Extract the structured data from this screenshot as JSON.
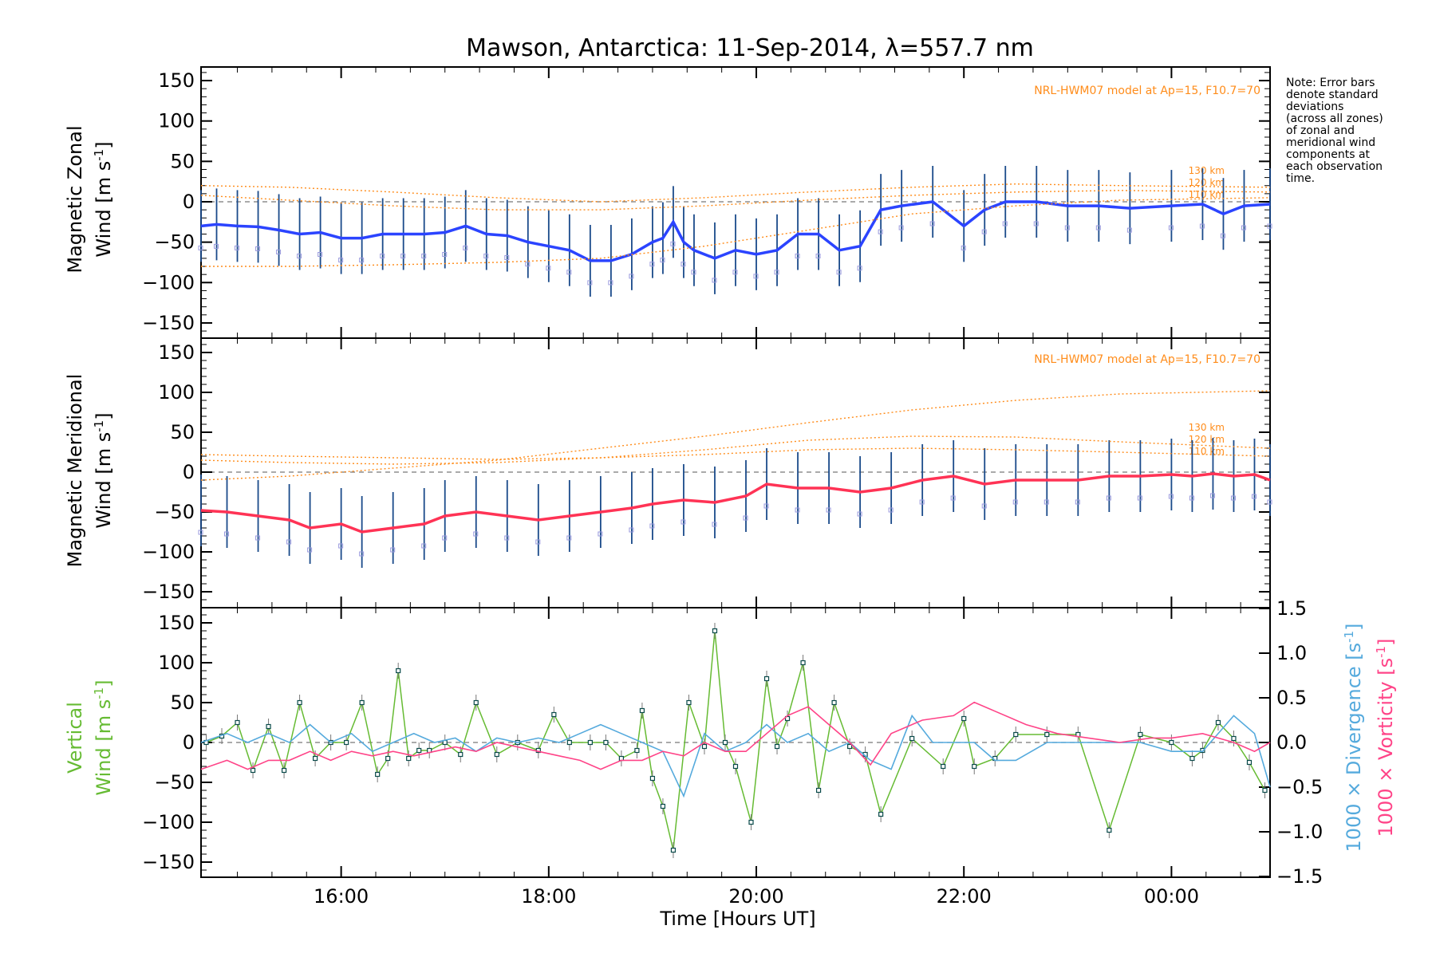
{
  "title": "Mawson, Antarctica: 11-Sep-2014, λ=557.7 nm",
  "note": [
    "Note: Error bars",
    "denote standard",
    "deviations",
    "(across all zones)",
    "of zonal and",
    "meridional wind",
    "components at",
    "each observation",
    "time."
  ],
  "x_axis": {
    "label": "Time [Hours UT]",
    "ticks": [
      "16:00",
      "18:00",
      "20:00",
      "22:00",
      "00:00"
    ],
    "tick_hours": [
      16,
      18,
      20,
      22,
      24
    ],
    "range_hours": [
      14.65,
      24.95
    ]
  },
  "colors": {
    "zonal": "#2b44ff",
    "meridional": "#ff3355",
    "vertical": "#66bb33",
    "divergence": "#55aadd",
    "vorticity": "#ff4488",
    "model": "#ff8c1a",
    "error_bar": "#1a4a8a",
    "zone_points": "#9999dd"
  },
  "panels": {
    "zonal": {
      "ylabel_line1": "Magnetic Zonal",
      "ylabel_line2": "Wind [m s",
      "ylabel_sup": "-1",
      "ylabel_close": "]",
      "model_label": "NRL-HWM07 model at Ap=15, F10.7=70",
      "altitudes": [
        "130 km",
        "120 km",
        "110 km"
      ],
      "yticks": [
        "150",
        "100",
        "50",
        "0",
        "−50",
        "−100",
        "−150"
      ]
    },
    "meridional": {
      "ylabel_line1": "Magnetic Meridional",
      "ylabel_line2": "Wind [m s",
      "ylabel_sup": "-1",
      "ylabel_close": "]",
      "model_label": "NRL-HWM07 model at Ap=15, F10.7=70",
      "altitudes": [
        "130 km",
        "120 km",
        "110 km"
      ],
      "yticks": [
        "150",
        "100",
        "50",
        "0",
        "−50",
        "−100",
        "−150"
      ]
    },
    "vertical": {
      "ylabel_line1": "Vertical",
      "ylabel_line2": "Wind [m s",
      "ylabel_sup": "-1",
      "ylabel_close": "]",
      "yticks": [
        "150",
        "100",
        "50",
        "0",
        "−50",
        "−100",
        "−150"
      ],
      "right_label_div": "1000 × Divergence [s",
      "right_label_vort": "1000 × Vorticity [s",
      "right_sup": "-1",
      "right_close": "]",
      "right_ticks": [
        "1.5",
        "1.0",
        "0.5",
        "0.0",
        "−0.5",
        "−1.0",
        "−1.5"
      ]
    }
  },
  "chart_data": [
    {
      "type": "line",
      "panel": "zonal",
      "title": "Mawson, Antarctica: 11-Sep-2014, λ=557.7 nm",
      "xlabel": "Time [Hours UT]",
      "ylabel": "Magnetic Zonal Wind [m s-1]",
      "xlim_hours": [
        14.65,
        24.95
      ],
      "ylim": [
        -165,
        165
      ],
      "series": [
        {
          "name": "zonal mean",
          "x": [
            14.65,
            14.8,
            15.0,
            15.2,
            15.4,
            15.6,
            15.8,
            16.0,
            16.2,
            16.4,
            16.6,
            16.8,
            17.0,
            17.2,
            17.4,
            17.6,
            17.8,
            18.0,
            18.2,
            18.4,
            18.6,
            18.8,
            19.0,
            19.1,
            19.2,
            19.3,
            19.4,
            19.6,
            19.8,
            20.0,
            20.2,
            20.4,
            20.6,
            20.8,
            21.0,
            21.2,
            21.4,
            21.7,
            22.0,
            22.2,
            22.4,
            22.7,
            23.0,
            23.3,
            23.6,
            24.0,
            24.3,
            24.5,
            24.7,
            24.95
          ],
          "y": [
            -30,
            -28,
            -30,
            -31,
            -35,
            -40,
            -38,
            -45,
            -45,
            -40,
            -40,
            -40,
            -38,
            -30,
            -40,
            -42,
            -50,
            -55,
            -60,
            -73,
            -73,
            -65,
            -50,
            -45,
            -25,
            -50,
            -60,
            -70,
            -60,
            -65,
            -60,
            -40,
            -40,
            -60,
            -55,
            -10,
            -5,
            0,
            -30,
            -10,
            0,
            0,
            -5,
            -5,
            -8,
            -5,
            -3,
            -15,
            -5,
            -3
          ]
        },
        {
          "name": "model 130 km",
          "x": [
            14.65,
            15.5,
            16.5,
            17.5,
            18.5,
            19.5,
            20.5,
            21.5,
            22.5,
            23.5,
            24.95
          ],
          "y": [
            20,
            18,
            12,
            5,
            0,
            5,
            12,
            18,
            22,
            20,
            18
          ]
        },
        {
          "name": "model 120 km",
          "x": [
            14.65,
            15.5,
            16.5,
            17.5,
            18.5,
            19.5,
            20.5,
            21.5,
            22.5,
            23.5,
            24.95
          ],
          "y": [
            8,
            2,
            -5,
            -10,
            -10,
            -5,
            2,
            8,
            12,
            14,
            12
          ]
        },
        {
          "name": "model 110 km",
          "x": [
            14.65,
            15.5,
            16.5,
            17.5,
            18.5,
            19.5,
            20.5,
            21.5,
            22.5,
            23.5,
            24.95
          ],
          "y": [
            -80,
            -80,
            -78,
            -75,
            -70,
            -55,
            -35,
            -15,
            -5,
            2,
            5
          ]
        }
      ]
    },
    {
      "type": "line",
      "panel": "meridional",
      "xlabel": "Time [Hours UT]",
      "ylabel": "Magnetic Meridional Wind [m s-1]",
      "xlim_hours": [
        14.65,
        24.95
      ],
      "ylim": [
        -165,
        165
      ],
      "series": [
        {
          "name": "meridional mean",
          "x": [
            14.65,
            14.9,
            15.2,
            15.5,
            15.7,
            16.0,
            16.2,
            16.5,
            16.8,
            17.0,
            17.3,
            17.6,
            17.9,
            18.2,
            18.5,
            18.8,
            19.0,
            19.3,
            19.6,
            19.9,
            20.1,
            20.4,
            20.7,
            21.0,
            21.3,
            21.6,
            21.9,
            22.2,
            22.5,
            22.8,
            23.1,
            23.4,
            23.7,
            24.0,
            24.2,
            24.4,
            24.6,
            24.8,
            24.95
          ],
          "y": [
            -48,
            -50,
            -55,
            -60,
            -70,
            -65,
            -75,
            -70,
            -65,
            -55,
            -50,
            -55,
            -60,
            -55,
            -50,
            -45,
            -40,
            -35,
            -38,
            -30,
            -15,
            -20,
            -20,
            -25,
            -20,
            -10,
            -5,
            -15,
            -10,
            -10,
            -10,
            -5,
            -5,
            -3,
            -5,
            -2,
            -5,
            -3,
            -10
          ]
        },
        {
          "name": "model 130 km",
          "x": [
            14.65,
            15.5,
            16.5,
            17.5,
            18.5,
            19.5,
            20.5,
            21.5,
            22.5,
            23.5,
            24.95
          ],
          "y": [
            -10,
            -5,
            5,
            15,
            30,
            45,
            62,
            78,
            90,
            98,
            102
          ]
        },
        {
          "name": "model 120 km",
          "x": [
            14.65,
            15.5,
            16.5,
            17.5,
            18.5,
            19.5,
            20.5,
            21.5,
            22.5,
            23.5,
            24.95
          ],
          "y": [
            15,
            12,
            10,
            12,
            18,
            28,
            40,
            45,
            44,
            38,
            30
          ]
        },
        {
          "name": "model 110 km",
          "x": [
            14.65,
            15.5,
            16.5,
            17.5,
            18.5,
            19.5,
            20.5,
            21.5,
            22.5,
            23.5,
            24.95
          ],
          "y": [
            22,
            20,
            18,
            16,
            18,
            22,
            28,
            30,
            28,
            25,
            20
          ]
        }
      ]
    },
    {
      "type": "line",
      "panel": "vertical",
      "xlabel": "Time [Hours UT]",
      "ylabel": "Vertical Wind [m s-1]",
      "xlim_hours": [
        14.65,
        24.95
      ],
      "ylim": [
        -165,
        165
      ],
      "y2label": "1000 × Divergence [s-1] / 1000 × Vorticity [s-1]",
      "y2lim": [
        -1.5,
        1.5
      ],
      "series": [
        {
          "name": "vertical wind",
          "axis": "left",
          "x": [
            14.7,
            14.85,
            15.0,
            15.15,
            15.3,
            15.45,
            15.6,
            15.75,
            15.9,
            16.05,
            16.2,
            16.35,
            16.45,
            16.55,
            16.65,
            16.75,
            16.85,
            17.0,
            17.15,
            17.3,
            17.5,
            17.7,
            17.9,
            18.05,
            18.2,
            18.4,
            18.55,
            18.7,
            18.85,
            18.9,
            19.0,
            19.1,
            19.2,
            19.35,
            19.5,
            19.6,
            19.7,
            19.8,
            19.95,
            20.1,
            20.2,
            20.3,
            20.45,
            20.6,
            20.75,
            20.9,
            21.05,
            21.2,
            21.5,
            21.8,
            22.0,
            22.1,
            22.3,
            22.5,
            22.8,
            23.1,
            23.4,
            23.7,
            24.0,
            24.2,
            24.3,
            24.45,
            24.6,
            24.75,
            24.9
          ],
          "y": [
            0,
            8,
            25,
            -35,
            20,
            -35,
            50,
            -20,
            0,
            0,
            50,
            -40,
            -20,
            90,
            -20,
            -10,
            -10,
            0,
            -15,
            50,
            -15,
            0,
            -10,
            35,
            0,
            0,
            0,
            -20,
            -10,
            40,
            -45,
            -80,
            -135,
            50,
            -5,
            140,
            0,
            -30,
            -100,
            80,
            -5,
            30,
            100,
            -60,
            50,
            -5,
            -15,
            -90,
            5,
            -30,
            30,
            -30,
            -20,
            10,
            10,
            10,
            -110,
            10,
            0,
            -20,
            -10,
            25,
            5,
            -25,
            -60
          ]
        },
        {
          "name": "1000 x Divergence",
          "axis": "right",
          "x": [
            14.65,
            14.9,
            15.1,
            15.3,
            15.5,
            15.7,
            15.9,
            16.1,
            16.3,
            16.5,
            16.7,
            16.9,
            17.1,
            17.3,
            17.5,
            17.7,
            17.9,
            18.1,
            18.3,
            18.5,
            18.7,
            18.9,
            19.1,
            19.3,
            19.5,
            19.7,
            19.9,
            20.1,
            20.3,
            20.5,
            20.7,
            20.9,
            21.1,
            21.3,
            21.5,
            21.7,
            21.9,
            22.1,
            22.3,
            22.5,
            22.8,
            23.1,
            23.4,
            23.7,
            24.0,
            24.3,
            24.6,
            24.8,
            24.95
          ],
          "y": [
            0.0,
            0.1,
            0.0,
            0.1,
            0.0,
            0.2,
            0.0,
            0.1,
            -0.1,
            0.0,
            0.1,
            0.0,
            0.05,
            -0.1,
            0.05,
            0.0,
            0.05,
            0.0,
            0.1,
            0.2,
            0.1,
            0.0,
            -0.1,
            -0.6,
            0.1,
            -0.1,
            0.0,
            0.2,
            0.0,
            0.1,
            -0.1,
            0.0,
            -0.2,
            -0.3,
            0.3,
            0.0,
            0.0,
            0.0,
            -0.2,
            -0.2,
            0.0,
            0.0,
            0.0,
            0.0,
            -0.1,
            -0.1,
            0.3,
            0.1,
            -0.5
          ]
        },
        {
          "name": "1000 x Vorticity",
          "axis": "right",
          "x": [
            14.65,
            14.9,
            15.1,
            15.3,
            15.5,
            15.7,
            15.9,
            16.1,
            16.3,
            16.5,
            16.7,
            16.9,
            17.1,
            17.3,
            17.5,
            17.7,
            17.9,
            18.1,
            18.3,
            18.5,
            18.7,
            18.9,
            19.1,
            19.3,
            19.5,
            19.7,
            19.9,
            20.1,
            20.3,
            20.5,
            20.7,
            20.9,
            21.1,
            21.3,
            21.6,
            21.9,
            22.1,
            22.3,
            22.6,
            22.9,
            23.2,
            23.5,
            23.8,
            24.0,
            24.3,
            24.6,
            24.8,
            24.95
          ],
          "y": [
            -0.3,
            -0.2,
            -0.3,
            -0.2,
            -0.2,
            -0.1,
            -0.2,
            -0.1,
            -0.15,
            -0.1,
            -0.15,
            -0.1,
            -0.05,
            -0.1,
            0.0,
            -0.05,
            -0.1,
            -0.15,
            -0.2,
            -0.3,
            -0.2,
            -0.2,
            -0.1,
            -0.15,
            0.0,
            -0.1,
            -0.1,
            0.1,
            0.3,
            0.4,
            0.2,
            0.0,
            -0.25,
            0.1,
            0.25,
            0.3,
            0.45,
            0.35,
            0.2,
            0.1,
            0.05,
            0.0,
            0.05,
            0.05,
            0.1,
            0.0,
            -0.1,
            0.0
          ]
        }
      ]
    }
  ]
}
